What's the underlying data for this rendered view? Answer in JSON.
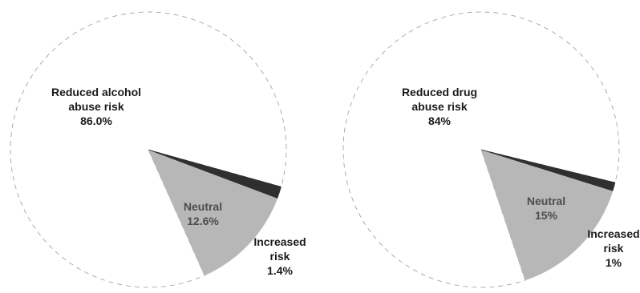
{
  "chart_data": [
    {
      "type": "pie",
      "slices": [
        {
          "label_lines": [
            "Reduced alcohol",
            "abuse risk"
          ],
          "value_label": "86.0%",
          "value": 86.0,
          "color": "#ffffff",
          "text_color": "#1a1a1a"
        },
        {
          "label_lines": [
            "Neutral"
          ],
          "value_label": "12.6%",
          "value": 12.6,
          "color": "#b7b7b7",
          "text_color": "#4d4d4d"
        },
        {
          "label_lines": [
            "Increased",
            "risk"
          ],
          "value_label": "1.4%",
          "value": 1.4,
          "color": "#2f2f2f",
          "text_color": "#1a1a1a"
        }
      ]
    },
    {
      "type": "pie",
      "slices": [
        {
          "label_lines": [
            "Reduced drug",
            "abuse risk"
          ],
          "value_label": "84%",
          "value": 84,
          "color": "#ffffff",
          "text_color": "#1a1a1a"
        },
        {
          "label_lines": [
            "Neutral"
          ],
          "value_label": "15%",
          "value": 15,
          "color": "#b7b7b7",
          "text_color": "#4d4d4d"
        },
        {
          "label_lines": [
            "Increased",
            "risk"
          ],
          "value_label": "1%",
          "value": 1,
          "color": "#2f2f2f",
          "text_color": "#1a1a1a"
        }
      ]
    }
  ]
}
